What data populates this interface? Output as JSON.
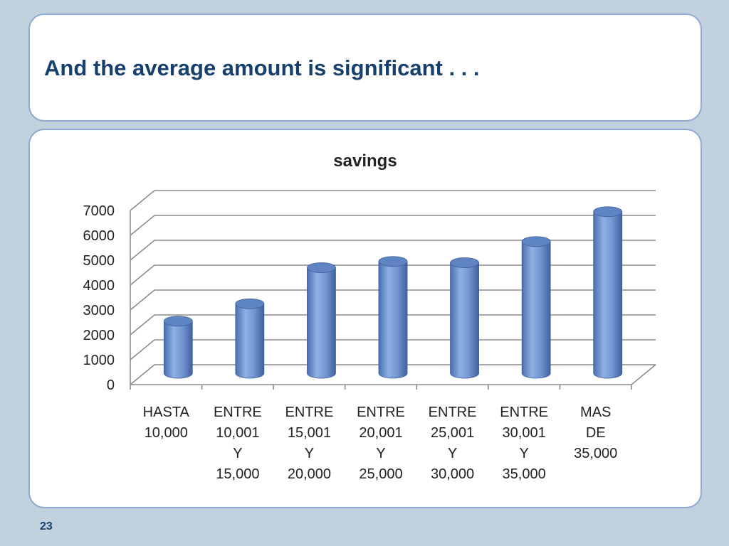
{
  "slide": {
    "title": "And the average amount is significant . . .",
    "page_number": "23"
  },
  "chart_data": {
    "type": "bar",
    "title": "savings",
    "categories": [
      [
        "HASTA",
        "10,000"
      ],
      [
        "ENTRE",
        "10,001",
        "Y",
        "15,000"
      ],
      [
        "ENTRE",
        "15,001",
        "Y",
        "20,000"
      ],
      [
        "ENTRE",
        "20,001",
        "Y",
        "25,000"
      ],
      [
        "ENTRE",
        "25,001",
        "Y",
        "30,000"
      ],
      [
        "ENTRE",
        "30,001",
        "Y",
        "35,000"
      ],
      [
        "MAS",
        "DE",
        "35,000"
      ]
    ],
    "values": [
      2150,
      2850,
      4300,
      4550,
      4500,
      5350,
      6550
    ],
    "ylim": [
      0,
      7000
    ],
    "yticks": [
      0,
      1000,
      2000,
      3000,
      4000,
      5000,
      6000,
      7000
    ],
    "grid": true,
    "bar_color": "#6f93cf"
  }
}
